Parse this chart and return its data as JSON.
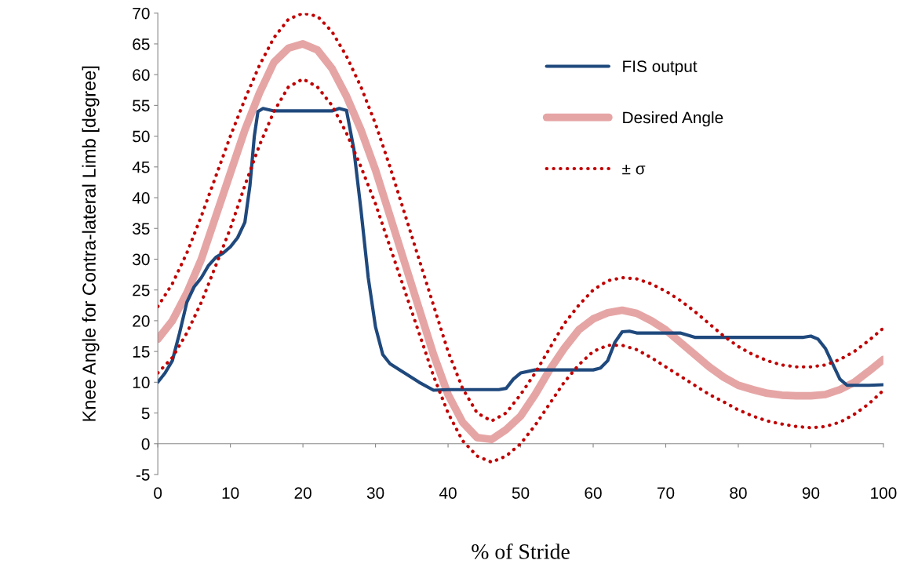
{
  "chart_data": {
    "type": "line",
    "xlabel": "% of Stride",
    "ylabel": "Knee Angle for Contra-lateral Limb [degree]",
    "xlim": [
      0,
      100
    ],
    "xticks": [
      0,
      10,
      20,
      30,
      40,
      50,
      60,
      70,
      80,
      90,
      100
    ],
    "ylim": [
      -5,
      70
    ],
    "yticks": [
      -5,
      0,
      5,
      10,
      15,
      20,
      25,
      30,
      35,
      40,
      45,
      50,
      55,
      60,
      65,
      70
    ],
    "legend": "right",
    "marker": "none",
    "series": [
      {
        "name": "FIS output",
        "color": "#1f497d",
        "line_style": "solid",
        "x": [
          0,
          1,
          2,
          3,
          4,
          5,
          6,
          7,
          8,
          9,
          10,
          11,
          12,
          12.7,
          13.3,
          13.8,
          14.5,
          16,
          18,
          20,
          22,
          24,
          25,
          26,
          27,
          28,
          29,
          30,
          31,
          32,
          34,
          36,
          38,
          40,
          42,
          44,
          46,
          47,
          48,
          49,
          50,
          52,
          54,
          56,
          58,
          60,
          61,
          62,
          63,
          64,
          65,
          66,
          70,
          72,
          74,
          80,
          86,
          89,
          90,
          91,
          92,
          93,
          94,
          95,
          96,
          98,
          100
        ],
        "values": [
          10,
          11.5,
          13.5,
          18,
          23,
          25.5,
          27,
          29,
          30.3,
          31,
          32,
          33.5,
          36,
          42,
          50,
          54,
          54.5,
          54.1,
          54.1,
          54.1,
          54.1,
          54.1,
          54.5,
          54.2,
          48,
          38,
          27,
          19,
          14.5,
          13,
          11.5,
          10,
          8.7,
          8.8,
          8.8,
          8.8,
          8.8,
          8.8,
          9,
          10.5,
          11.5,
          12,
          12,
          12,
          12,
          12,
          12.3,
          13.5,
          16.5,
          18.2,
          18.3,
          18,
          18,
          18,
          17.3,
          17.3,
          17.3,
          17.3,
          17.5,
          17,
          15.5,
          13,
          10.5,
          9.5,
          9.5,
          9.5,
          9.6
        ]
      },
      {
        "name": "Desired Angle",
        "color": "#e6a5a5",
        "line_style": "solid",
        "x": [
          0,
          2,
          4,
          6,
          8,
          10,
          12,
          14,
          16,
          18,
          20,
          22,
          24,
          26,
          28,
          30,
          32,
          34,
          36,
          38,
          40,
          42,
          44,
          46,
          48,
          50,
          52,
          54,
          56,
          58,
          60,
          62,
          64,
          66,
          68,
          70,
          72,
          74,
          76,
          78,
          80,
          82,
          84,
          86,
          88,
          90,
          92,
          94,
          96,
          98,
          100
        ],
        "values": [
          17,
          20,
          24.5,
          30,
          37,
          44,
          51,
          57,
          62,
          64.3,
          65,
          64,
          61,
          56.5,
          51,
          44.5,
          37,
          29.5,
          22,
          14.5,
          8,
          3.5,
          1,
          0.7,
          2.3,
          4.5,
          8,
          12,
          15.5,
          18.5,
          20.3,
          21.3,
          21.7,
          21.2,
          20,
          18.5,
          16.5,
          14.5,
          12.5,
          10.8,
          9.5,
          8.8,
          8.2,
          7.9,
          7.8,
          7.8,
          8,
          8.8,
          10,
          11.8,
          13.7
        ]
      },
      {
        "name": "± σ",
        "color": "#c00000",
        "line_style": "dotted",
        "x": [
          0,
          2,
          4,
          6,
          8,
          10,
          12,
          14,
          16,
          18,
          20,
          22,
          24,
          26,
          28,
          30,
          32,
          34,
          36,
          38,
          40,
          42,
          44,
          46,
          48,
          50,
          52,
          54,
          56,
          58,
          60,
          62,
          64,
          66,
          68,
          70,
          72,
          74,
          76,
          78,
          80,
          82,
          84,
          86,
          88,
          90,
          92,
          94,
          96,
          98,
          100
        ],
        "values": [
          22.3,
          26,
          31,
          37,
          43.5,
          50,
          56,
          61.5,
          66,
          69,
          70,
          69.5,
          67,
          63,
          58,
          52,
          45,
          37.5,
          30,
          22.5,
          15,
          9,
          5,
          3.7,
          5,
          8,
          11.5,
          15.5,
          19.5,
          22.5,
          25,
          26.5,
          27,
          26.8,
          26,
          24.8,
          23.3,
          21.5,
          19.5,
          17.5,
          15.8,
          14.5,
          13.5,
          12.8,
          12.5,
          12.5,
          12.8,
          13.7,
          15,
          16.8,
          18.8
        ]
      },
      {
        "color": "#c00000",
        "line_style": "dotted",
        "x": [
          0,
          2,
          4,
          6,
          8,
          10,
          12,
          14,
          16,
          18,
          20,
          22,
          24,
          26,
          28,
          30,
          32,
          34,
          36,
          38,
          40,
          42,
          44,
          46,
          48,
          50,
          52,
          54,
          56,
          58,
          60,
          62,
          64,
          66,
          68,
          70,
          72,
          74,
          76,
          78,
          80,
          82,
          84,
          86,
          88,
          90,
          92,
          94,
          96,
          98,
          100
        ],
        "values": [
          11.5,
          14,
          18,
          23,
          29,
          35,
          42,
          48.5,
          54,
          58,
          59.3,
          58,
          55,
          50.5,
          45,
          39,
          32,
          25,
          18,
          11,
          5,
          0.5,
          -2,
          -3,
          -2,
          0,
          3,
          6.5,
          10,
          12.8,
          15,
          16,
          16,
          15.3,
          14,
          12.5,
          11,
          9.5,
          8,
          6.8,
          5.5,
          4.5,
          3.7,
          3.2,
          2.8,
          2.6,
          2.8,
          3.5,
          4.8,
          6.5,
          8.7
        ]
      }
    ]
  }
}
